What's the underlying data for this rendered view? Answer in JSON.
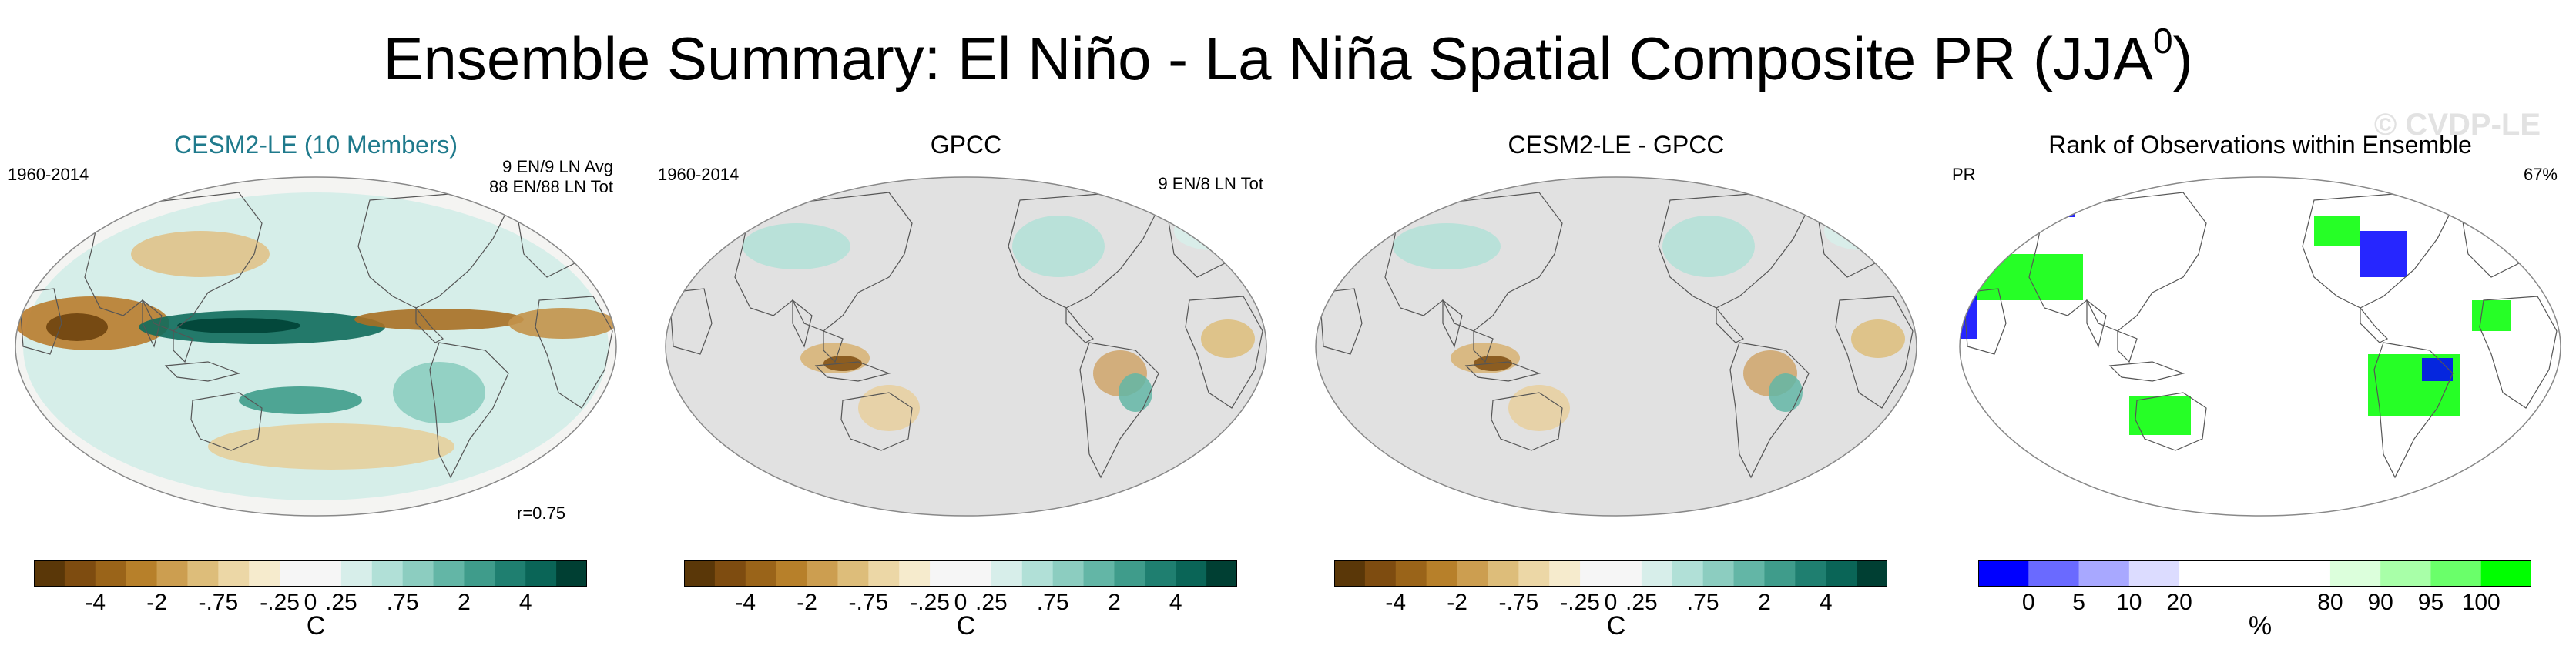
{
  "title": "Ensemble Summary: El Niño - La Niña Spatial Composite PR (JJA",
  "title_sup": "0",
  "title_tail": ")",
  "watermark": "© CVDP-LE",
  "panels": [
    {
      "title": "CESM2-LE (10 Members)",
      "left_label": "1960-2014",
      "right_label_1": "9 EN/9 LN Avg",
      "right_label_2": "88 EN/88 LN Tot",
      "bottom_label": "r=0.75",
      "unit": "C",
      "ticks": [
        "-4",
        "-2",
        "-.75",
        "-.25",
        "0",
        ".25",
        ".75",
        "2",
        "4"
      ],
      "map_kind": "model"
    },
    {
      "title": "GPCC",
      "left_label": "1960-2014",
      "right_label_1": "9 EN/8 LN Tot",
      "right_label_2": "",
      "bottom_label": "",
      "unit": "C",
      "ticks": [
        "-4",
        "-2",
        "-.75",
        "-.25",
        "0",
        ".25",
        ".75",
        "2",
        "4"
      ],
      "map_kind": "obs"
    },
    {
      "title": "CESM2-LE - GPCC",
      "left_label": "",
      "right_label_1": "",
      "right_label_2": "",
      "bottom_label": "",
      "unit": "C",
      "ticks": [
        "-4",
        "-2",
        "-.75",
        "-.25",
        "0",
        ".25",
        ".75",
        "2",
        "4"
      ],
      "map_kind": "diff"
    },
    {
      "title": "Rank of Observations within Ensemble",
      "left_label": "PR",
      "right_label_1": "67%",
      "right_label_2": "",
      "bottom_label": "",
      "unit": "%",
      "ticks": [
        "0",
        "5",
        "10",
        "20",
        "80",
        "90",
        "95",
        "100"
      ],
      "map_kind": "rank"
    }
  ],
  "colors": {
    "brown_teal_scale": [
      "#5a3708",
      "#7e4c10",
      "#9a6419",
      "#b7802a",
      "#cc9e50",
      "#ddbd7a",
      "#ecd7a6",
      "#f6ebcd",
      "#f6f6f6",
      "#f6f6f6",
      "#d7eeea",
      "#b1e0d7",
      "#8ccdc0",
      "#63b6a6",
      "#3f9c8b",
      "#1f7f70",
      "#0a6557",
      "#003f33"
    ],
    "rank_scale": [
      "#0000ff",
      "#6a6aff",
      "#a8a8ff",
      "#dcdcff",
      "#ffffff",
      "#ffffff",
      "#ffffff",
      "#dcffdc",
      "#a8ffa8",
      "#6aff6a",
      "#00ff00"
    ],
    "land_gray": "#e1e1e1",
    "title_teal": "#1f7a8c"
  }
}
